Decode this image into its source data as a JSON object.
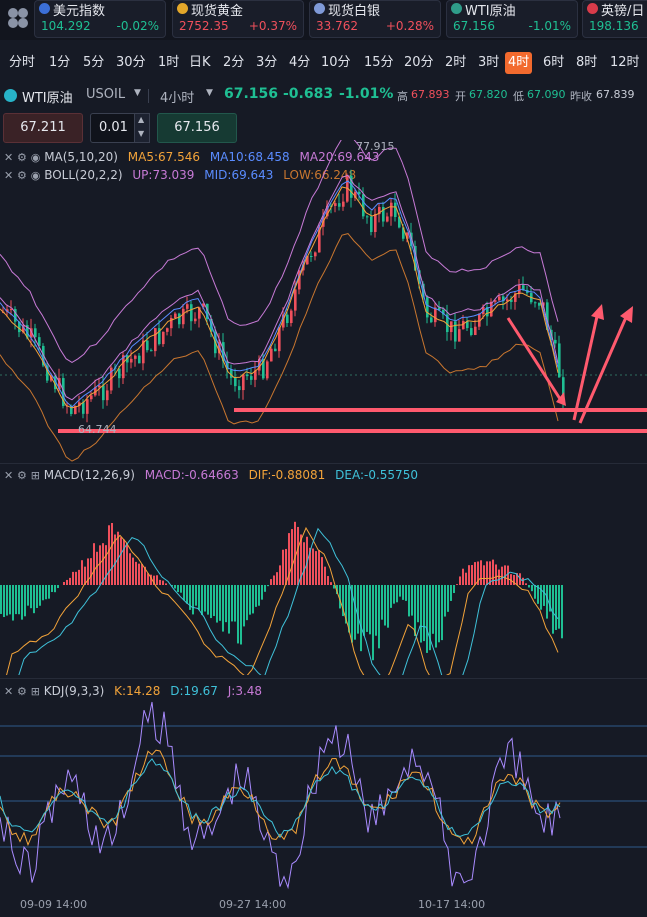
{
  "tickers": [
    {
      "name": "美元指数",
      "value": "104.292",
      "change": "-0.02%",
      "dir": "down",
      "icon": "us-flag-icon",
      "color": "#3b6fd8"
    },
    {
      "name": "现货黄金",
      "value": "2752.35",
      "change": "+0.37%",
      "dir": "up",
      "icon": "gold-icon",
      "color": "#e3a72a"
    },
    {
      "name": "现货白银",
      "value": "33.762",
      "change": "+0.28%",
      "dir": "up",
      "icon": "silver-icon",
      "color": "#7f9ad8"
    },
    {
      "name": "WTI原油",
      "value": "67.156",
      "change": "-1.01%",
      "dir": "down",
      "icon": "oil-icon",
      "color": "#2f9d8a"
    },
    {
      "name": "英镑/日",
      "value": "198.136",
      "change": "",
      "dir": "down",
      "icon": "uk-flag-icon",
      "color": "#d83b4a"
    }
  ],
  "periods": [
    "分时",
    "1分",
    "5分",
    "30分",
    "1时",
    "日K",
    "2分",
    "3分",
    "4分",
    "10分",
    "15分",
    "20分",
    "2时",
    "3时",
    "4时",
    "6时",
    "8时",
    "12时"
  ],
  "active_period": "4时",
  "symbol": {
    "name": "WTI原油",
    "code": "USOIL",
    "interval": "4小时",
    "price": "67.156",
    "change": "-0.683",
    "change_pct": "-1.01%",
    "high_label": "高",
    "high": "67.893",
    "open_label": "开",
    "open": "67.820",
    "low_label": "低",
    "low": "67.090",
    "prev_close_label": "昨收",
    "prev_close": "67.839"
  },
  "order": {
    "sell_price": "67.211",
    "lot": "0.01",
    "buy_price": "67.156",
    "up_arrow": "▲",
    "down_arrow": "▼"
  },
  "indicators": {
    "ma": {
      "label": "MA(5,10,20)",
      "ma5": "MA5:67.546",
      "ma10": "MA10:68.458",
      "ma20": "MA20:69.643"
    },
    "boll": {
      "label": "BOLL(20,2,2)",
      "up": "UP:73.039",
      "mid": "MID:69.643",
      "low": "LOW:66.248"
    },
    "macd": {
      "label": "MACD(12,26,9)",
      "macd": "MACD:-0.64663",
      "dif": "DIF:-0.88081",
      "dea": "DEA:-0.55750"
    },
    "kdj": {
      "label": "KDJ(9,3,3)",
      "k": "K:14.28",
      "d": "D:19.67",
      "j": "J:3.48"
    }
  },
  "chart": {
    "max_label": "77.915",
    "min_label": "64.744"
  },
  "x_axis": [
    "09-09 14:00",
    "09-27 14:00",
    "10-17 14:00"
  ],
  "colors": {
    "up": "#f0505c",
    "down": "#1fbf93",
    "accent": "#f26a2e",
    "annotation": "#ff5a6e",
    "ma5": "#f2a33a",
    "ma10": "#5a8cff",
    "ma20": "#c77ad6",
    "boll_up": "#c77ad6",
    "boll_low": "#c8762f"
  },
  "icons": {
    "close": "close-icon",
    "settings": "gear-icon",
    "eye": "eye-icon",
    "add": "plus-box-icon",
    "menu": "grid-menu-icon",
    "dropdown": "chevron-down-icon"
  }
}
